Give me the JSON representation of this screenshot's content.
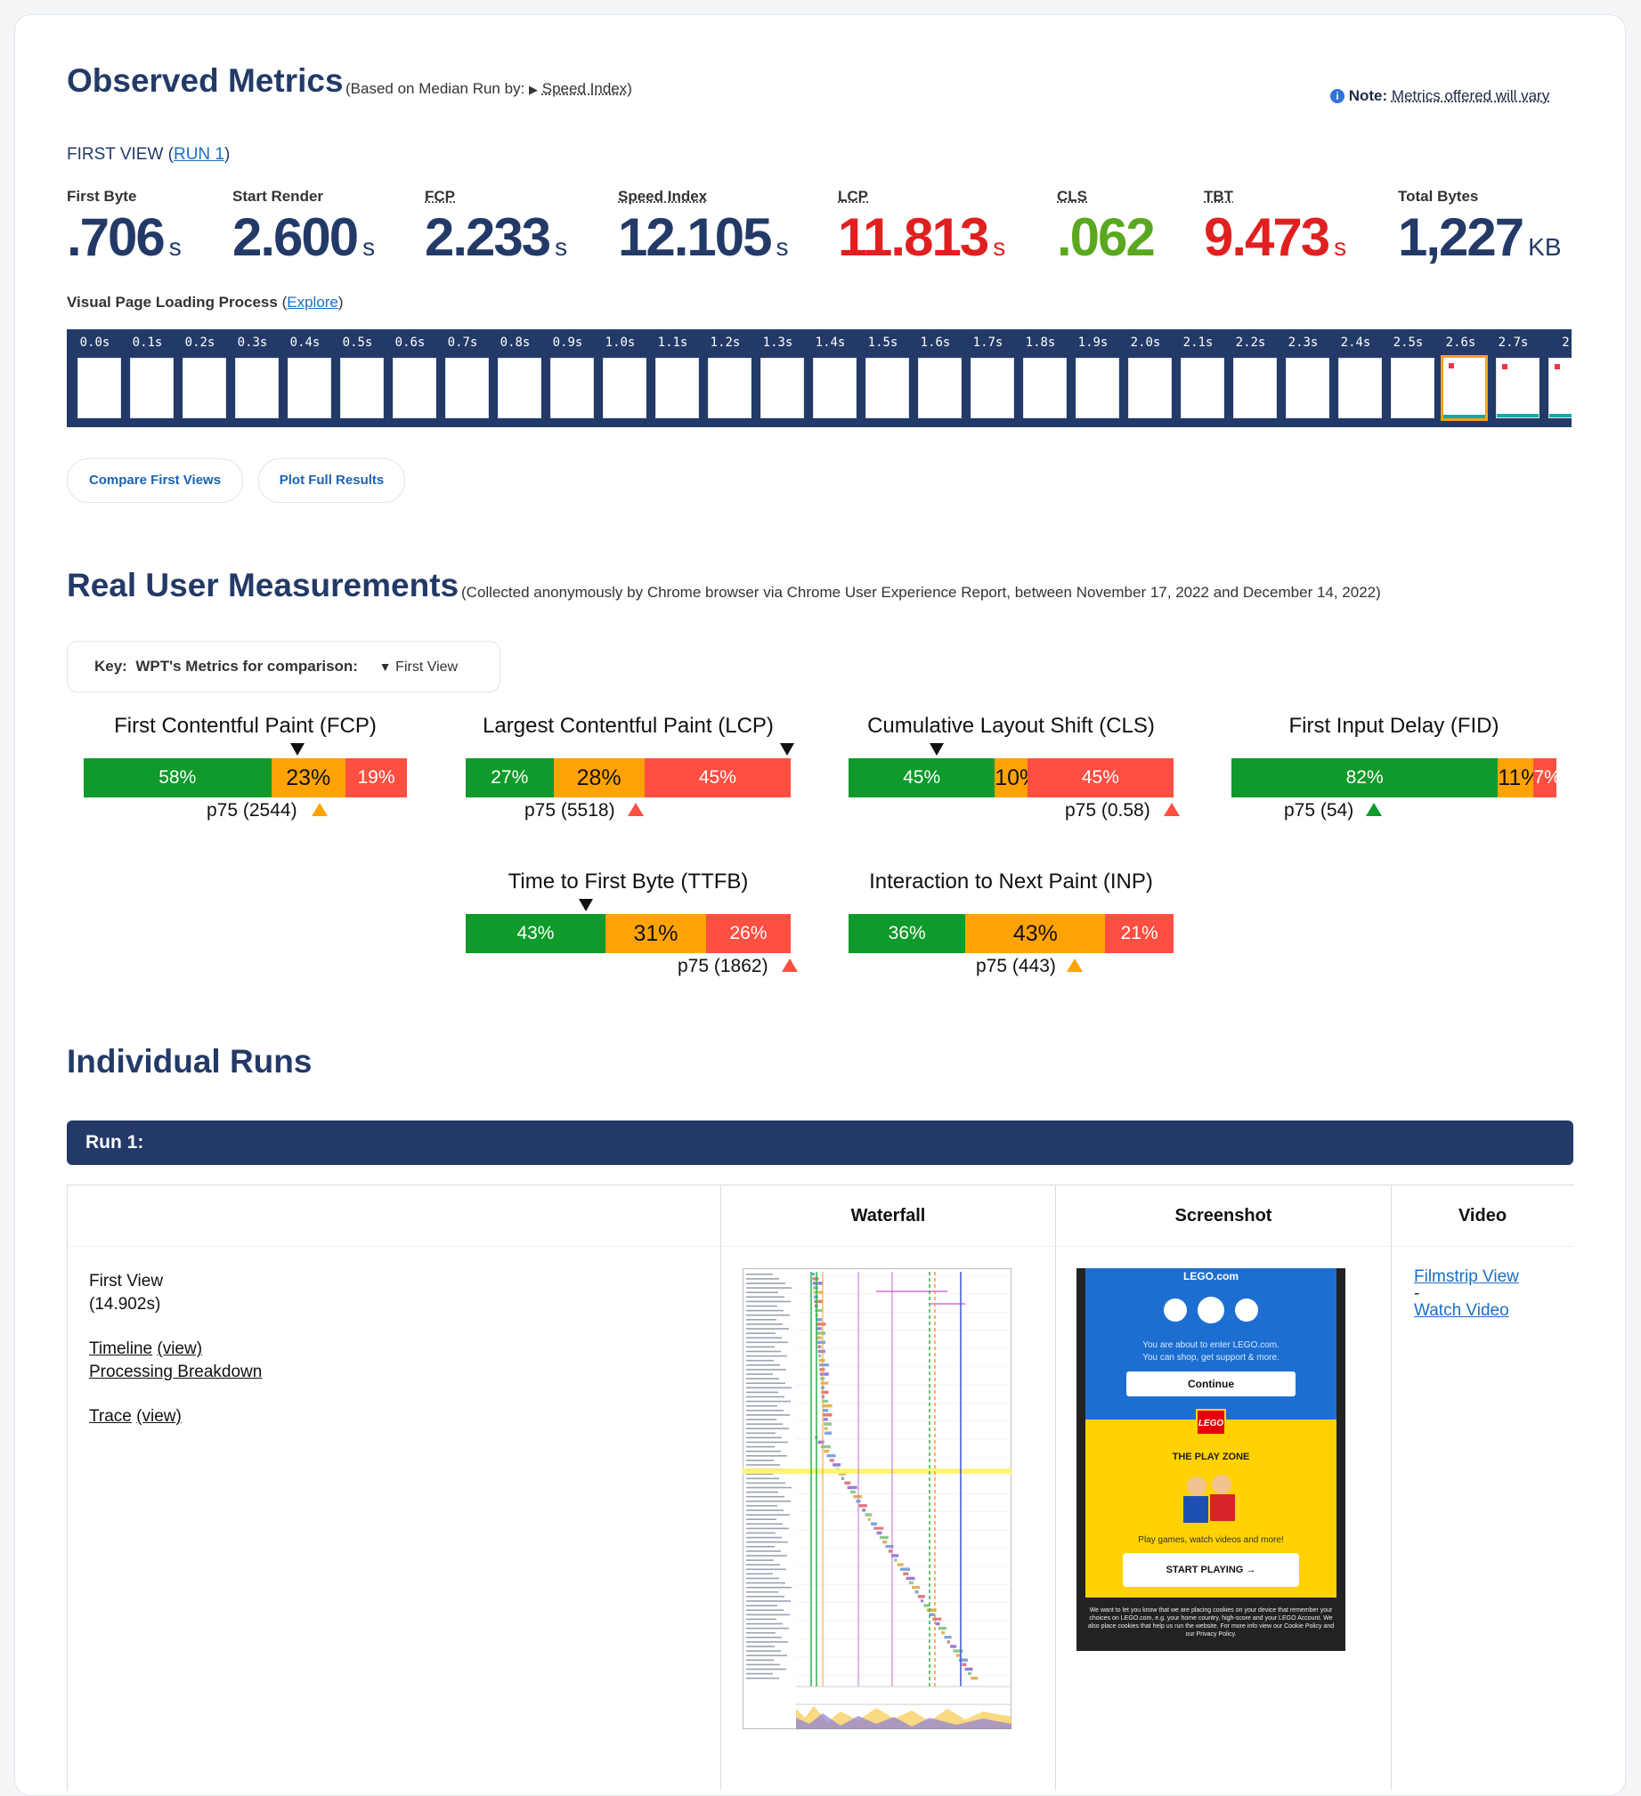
{
  "observed": {
    "title": "Observed Metrics",
    "median_prefix": "(Based on Median Run by:",
    "median_caret": "▶",
    "median_metric": "Speed Index",
    "median_suffix": ")",
    "note_icon": "info-icon",
    "note_label": "Note:",
    "note_text": "Metrics offered will vary",
    "first_view_label": "FIRST VIEW (",
    "run_link": "RUN 1",
    "first_view_close": ")",
    "metrics": [
      {
        "label": "First Byte",
        "value": ".706",
        "unit": "s",
        "color": "#233a68"
      },
      {
        "label": "Start Render",
        "value": "2.600",
        "unit": "s",
        "color": "#233a68"
      },
      {
        "label": "FCP",
        "value": "2.233",
        "unit": "s",
        "color": "#233a68"
      },
      {
        "label": "Speed Index",
        "value": "12.105",
        "unit": "s",
        "color": "#233a68"
      },
      {
        "label": "LCP",
        "value": "11.813",
        "unit": "s",
        "color": "#e02020"
      },
      {
        "label": "CLS",
        "value": ".062",
        "unit": "",
        "color": "#5aa81e"
      },
      {
        "label": "TBT",
        "value": "9.473",
        "unit": "s",
        "color": "#e02020"
      },
      {
        "label": "Total Bytes",
        "value": "1,227",
        "unit": "KB",
        "color": "#233a68"
      }
    ],
    "visual_label": "Visual Page Loading Process",
    "explore_open": "(",
    "explore_link": "Explore",
    "explore_close": ")",
    "filmstrip_times": [
      "0.0s",
      "0.1s",
      "0.2s",
      "0.3s",
      "0.4s",
      "0.5s",
      "0.6s",
      "0.7s",
      "0.8s",
      "0.9s",
      "1.0s",
      "1.1s",
      "1.2s",
      "1.3s",
      "1.4s",
      "1.5s",
      "1.6s",
      "1.7s",
      "1.8s",
      "1.9s",
      "2.0s",
      "2.1s",
      "2.2s",
      "2.3s",
      "2.4s",
      "2.5s",
      "2.6s",
      "2.7s",
      "2"
    ],
    "compare_button": "Compare First Views",
    "plot_button": "Plot Full Results"
  },
  "rum": {
    "title": "Real User Measurements",
    "subtitle": "(Collected anonymously by Chrome browser via Chrome User Experience Report, between November 17, 2022 and December 14, 2022)",
    "key_label": "Key:",
    "key_metrics": "WPT's Metrics for comparison:",
    "key_marker": "▼",
    "key_view": "First View",
    "cards": [
      {
        "title": "First Contentful Paint (FCP)",
        "good": 58,
        "ni": 23,
        "poor": 19,
        "good_label": "58%",
        "ni_label": "23%",
        "poor_label": "19%",
        "p75": "p75 (2544)",
        "status": "orange",
        "wpt_pct": 66
      },
      {
        "title": "Largest Contentful Paint (LCP)",
        "good": 27,
        "ni": 28,
        "poor": 45,
        "good_label": "27%",
        "ni_label": "28%",
        "poor_label": "45%",
        "p75": "p75 (5518)",
        "status": "red",
        "wpt_pct": 99
      },
      {
        "title": "Cumulative Layout Shift (CLS)",
        "good": 45,
        "ni": 10,
        "poor": 45,
        "good_label": "45%",
        "ni_label": "10%",
        "poor_label": "45%",
        "p75": "p75 (0.58)",
        "status": "red",
        "wpt_pct": 27
      },
      {
        "title": "First Input Delay (FID)",
        "good": 82,
        "ni": 11,
        "poor": 7,
        "good_label": "82%",
        "ni_label": "11%",
        "poor_label": "7%",
        "p75": "p75 (54)",
        "status": "green",
        "wpt_pct": null
      },
      {
        "title": "Time to First Byte (TTFB)",
        "good": 43,
        "ni": 31,
        "poor": 26,
        "good_label": "43%",
        "ni_label": "31%",
        "poor_label": "26%",
        "p75": "p75 (1862)",
        "status": "red",
        "wpt_pct": 37
      },
      {
        "title": "Interaction to Next Paint (INP)",
        "good": 36,
        "ni": 43,
        "poor": 21,
        "good_label": "36%",
        "ni_label": "43%",
        "poor_label": "21%",
        "p75": "p75 (443)",
        "status": "orange",
        "wpt_pct": null
      }
    ]
  },
  "runs": {
    "title": "Individual Runs",
    "run_header": "Run 1:",
    "col_waterfall": "Waterfall",
    "col_screenshot": "Screenshot",
    "col_video": "Video",
    "first_view": "First View",
    "first_view_time": "(14.902s)",
    "timeline": "Timeline",
    "timeline_view": "(view)",
    "processing": "Processing Breakdown",
    "trace": "Trace",
    "trace_view": "(view)",
    "filmstrip_view": "Filmstrip View",
    "dash": "-",
    "watch_video": "Watch Video",
    "screenshot": {
      "site": "LEGO.com",
      "enter_text_1": "You are about to enter LEGO.com.",
      "enter_text_2": "You can shop, get support & more.",
      "continue": "Continue",
      "logo": "LEGO",
      "play_zone": "THE PLAY ZONE",
      "play_text": "Play games, watch videos and more!",
      "start_playing": "START PLAYING →",
      "cookie_text": "We want to let you know that we are placing cookies on your device that remember your choices on LEGO.com, e.g. your home country, high-score and your LEGO Account. We also place cookies that help us run the website. For more info view our Cookie Policy and our Privacy Policy."
    }
  }
}
